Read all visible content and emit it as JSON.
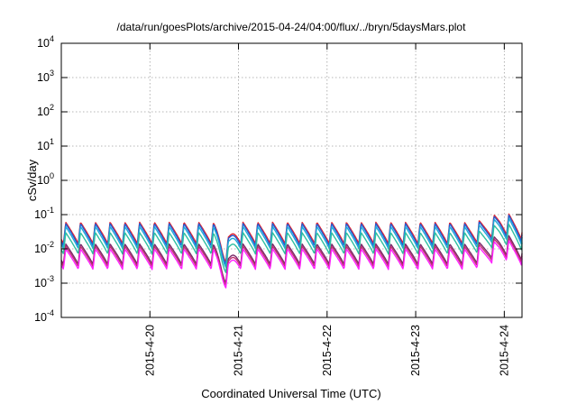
{
  "chart_data": {
    "type": "line",
    "title": "/data/run/goesPlots/archive/2015-04-24/04:00/flux/../bryn/5daysMars.plot",
    "xlabel": "Coordinated Universal Time (UTC)",
    "ylabel": "cSv/day",
    "yscale": "log",
    "ylim": [
      0.0001,
      10000
    ],
    "xlim": [
      0.0,
      5.2
    ],
    "y_ticks": [
      {
        "base": "10",
        "exp": "-4",
        "value": 0.0001
      },
      {
        "base": "10",
        "exp": "-3",
        "value": 0.001
      },
      {
        "base": "10",
        "exp": "-2",
        "value": 0.01
      },
      {
        "base": "10",
        "exp": "-1",
        "value": 0.1
      },
      {
        "base": "10",
        "exp": "0",
        "value": 1
      },
      {
        "base": "10",
        "exp": "1",
        "value": 10
      },
      {
        "base": "10",
        "exp": "2",
        "value": 100
      },
      {
        "base": "10",
        "exp": "3",
        "value": 1000
      },
      {
        "base": "10",
        "exp": "4",
        "value": 10000
      }
    ],
    "x_ticks": [
      {
        "label": "2015-4-20",
        "value": 1.0
      },
      {
        "label": "2015-4-21",
        "value": 2.0
      },
      {
        "label": "2015-4-22",
        "value": 3.0
      },
      {
        "label": "2015-4-23",
        "value": 4.0
      },
      {
        "label": "2015-4-24",
        "value": 5.0
      }
    ],
    "grid": true,
    "pattern": {
      "period_days": 0.1667,
      "first_peak_x": 0.05,
      "dip_x": 1.85,
      "dip_min": 0.0011,
      "late_peak_x": 4.95,
      "late_peak_y": 0.11
    },
    "series": [
      {
        "color": "#e8202a",
        "peak": 0.06,
        "trough": 0.014
      },
      {
        "color": "#1f5fd6",
        "peak": 0.055,
        "trough": 0.012
      },
      {
        "color": "#1fa8d8",
        "peak": 0.045,
        "trough": 0.01
      },
      {
        "color": "#2fbfa0",
        "peak": 0.03,
        "trough": 0.007
      },
      {
        "color": "#7a2a6a",
        "peak": 0.014,
        "trough": 0.0035
      },
      {
        "color": "#c03070",
        "peak": 0.012,
        "trough": 0.003
      },
      {
        "color": "#ff22ff",
        "peak": 0.01,
        "trough": 0.0025
      }
    ]
  }
}
